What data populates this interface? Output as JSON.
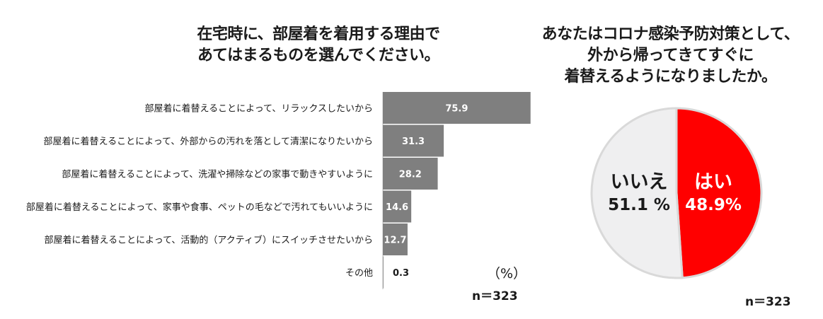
{
  "bar_title_lines": [
    "在宅時に、部屋着を着用する理由で",
    "あてはまるものを選んでください。"
  ],
  "pie_title_lines": [
    "あなたはコロナ感染予防対策として、",
    "外から帰ってきてすぐに",
    "着替えるようになりましたか。"
  ],
  "bar_unit": "（%）",
  "bar_n": "n＝323",
  "pie_n": "n＝323",
  "pie_labels": {
    "no_label": "いいえ",
    "no_value": "51.1 %",
    "yes_label": "はい",
    "yes_value": "48.9%"
  },
  "colors": {
    "bar": "#7f7f7f",
    "yes": "#ff0000",
    "no": "#efeff0",
    "pie_edge": "#d9d9d9"
  },
  "chart_data": [
    {
      "type": "bar",
      "orientation": "horizontal",
      "categories": [
        "部屋着に着替えることによって、リラックスしたいから",
        "部屋着に着替えることによって、外部からの汚れを落として清潔になりたいから",
        "部屋着に着替えることによって、洗濯や掃除などの家事で動きやすいように",
        "部屋着に着替えることによって、家事や食事、ペットの毛などで汚れてもいいように",
        "部屋着に着替えることによって、活動的（アクティブ）にスイッチさせたいから",
        "その他"
      ],
      "values": [
        75.9,
        31.3,
        28.2,
        14.6,
        12.7,
        0.3
      ],
      "value_labels": [
        "75.9",
        "31.3",
        "28.2",
        "14.6",
        "12.7",
        "0.3"
      ],
      "xlim": [
        0,
        100
      ]
    },
    {
      "type": "pie",
      "labels": [
        "はい",
        "いいえ"
      ],
      "values": [
        48.9,
        51.1
      ]
    }
  ]
}
